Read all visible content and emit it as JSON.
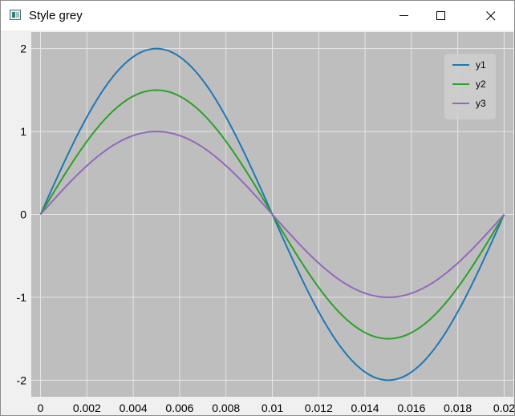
{
  "window": {
    "title": "Style grey",
    "icon": "app-window-icon",
    "controls": [
      "minimize-icon",
      "maximize-icon",
      "close-icon"
    ]
  },
  "chart_data": {
    "type": "line",
    "title": "",
    "xlabel": "",
    "ylabel": "",
    "xlim": [
      -0.0004,
      0.0204
    ],
    "ylim": [
      -2.2,
      2.2
    ],
    "x_ticks": [
      0,
      0.002,
      0.004,
      0.006,
      0.008,
      0.01,
      0.012,
      0.014,
      0.016,
      0.018,
      0.02
    ],
    "x_tick_labels": [
      "0",
      "0.002",
      "0.004",
      "0.006",
      "0.008",
      "0.01",
      "0.012",
      "0.014",
      "0.016",
      "0.018",
      "0.02"
    ],
    "y_ticks": [
      -2,
      -1,
      0,
      1,
      2
    ],
    "y_tick_labels": [
      "-2",
      "-1",
      "0",
      "1",
      "2"
    ],
    "grid": true,
    "background": "#bebebe",
    "legend": {
      "position": "top-right",
      "background": "#cfcfcf"
    },
    "function": "amplitude * sin(2*pi*50*x)",
    "x_range": [
      0,
      0.02
    ],
    "series": [
      {
        "name": "y1",
        "amplitude": 2.0,
        "color": "#1f77b4"
      },
      {
        "name": "y2",
        "amplitude": 1.5,
        "color": "#2ca02c"
      },
      {
        "name": "y3",
        "amplitude": 1.0,
        "color": "#9467bd"
      }
    ]
  }
}
